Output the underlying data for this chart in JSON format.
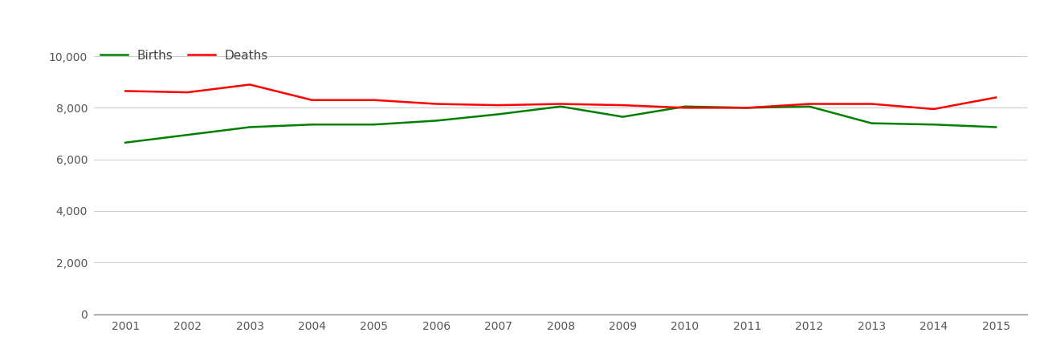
{
  "years": [
    2001,
    2002,
    2003,
    2004,
    2005,
    2006,
    2007,
    2008,
    2009,
    2010,
    2011,
    2012,
    2013,
    2014,
    2015
  ],
  "births": [
    6650,
    6950,
    7250,
    7350,
    7350,
    7500,
    7750,
    8050,
    7650,
    8050,
    8000,
    8050,
    7400,
    7350,
    7250
  ],
  "deaths": [
    8650,
    8600,
    8900,
    8300,
    8300,
    8150,
    8100,
    8150,
    8100,
    8000,
    8000,
    8150,
    8150,
    7950,
    8400
  ],
  "births_color": "#008000",
  "deaths_color": "#ff0000",
  "ylim": [
    0,
    10500
  ],
  "yticks": [
    0,
    2000,
    4000,
    6000,
    8000,
    10000
  ],
  "ytick_labels": [
    "0",
    "2,000",
    "4,000",
    "6,000",
    "8,000",
    "10,000"
  ],
  "legend_births": "Births",
  "legend_deaths": "Deaths",
  "background_color": "#ffffff",
  "grid_color": "#cccccc",
  "line_width": 1.8,
  "tick_color": "#555555",
  "tick_fontsize": 10,
  "legend_fontsize": 11
}
